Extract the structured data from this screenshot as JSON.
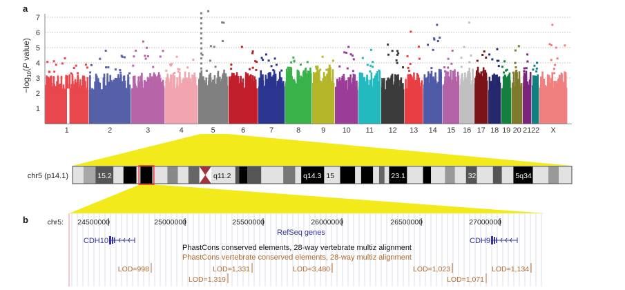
{
  "panel_a_label": "a",
  "panel_b_label": "b",
  "chart_data": {
    "type": "scatter",
    "subtype": "manhattan",
    "ylabel_parts": [
      "−log",
      "10",
      "(",
      "P",
      " value)"
    ],
    "ylim": [
      0,
      7.7
    ],
    "yticks": [
      "1",
      "2",
      "3",
      "4",
      "5",
      "6",
      "7"
    ],
    "grid": "dotted horizontal at 3-7",
    "categories": [
      "1",
      "2",
      "3",
      "4",
      "5",
      "6",
      "7",
      "8",
      "9",
      "10",
      "11",
      "12",
      "13",
      "14",
      "15",
      "16",
      "17",
      "18",
      "19",
      "20",
      "21",
      "22",
      "X"
    ],
    "colors": [
      "#e8474e",
      "#5560a8",
      "#b864a8",
      "#f2a5ae",
      "#808080",
      "#c11f2b",
      "#2a3590",
      "#39b24a",
      "#b5b52a",
      "#9b3d98",
      "#22b9bf",
      "#3b3b3b",
      "#e83e44",
      "#4e5aa8",
      "#b462a8",
      "#c0c0c0",
      "#7a1418",
      "#26286e",
      "#148040",
      "#7d7a2c",
      "#7a247c",
      "#128080",
      "#f08080"
    ],
    "max_neglog10_p": [
      4.3,
      4.8,
      5.4,
      4.4,
      7.4,
      5.05,
      4.55,
      4.35,
      4.4,
      5.05,
      4.85,
      5.2,
      6.05,
      6.5,
      4.8,
      6.65,
      4.75,
      4.9,
      4.1,
      5.1,
      4.55,
      4.0,
      6.5
    ]
  },
  "ideogram": {
    "label": "chr5 (p14.1)",
    "band_labels": [
      "15.2",
      "q11.2",
      "q14.3",
      "15",
      "23.1",
      "32",
      "5q34"
    ],
    "highlight_color": "#e8323c",
    "zoom_color": "#f2ea1a"
  },
  "browser": {
    "chrom_label": "chr5:",
    "coordinates": [
      "24500000",
      "25000000",
      "25500000",
      "26000000",
      "26500000",
      "27000000"
    ],
    "refseq_title": "RefSeq genes",
    "genes": [
      "CDH10",
      "CDH9"
    ],
    "phastcons_track": "PhastCons conserved elements, 28-way vertebrate multiz alignment",
    "phastcons_vertebrate_track": "PhastCons vertebrate conserved elements, 28-way multiz alignment",
    "lod_scores": [
      "LOD=998",
      "LOD=1,331",
      "LOD=3,480",
      "LOD=1,023",
      "LOD=1,134",
      "LOD=1,319",
      "LOD=1,071"
    ],
    "gene_color": "#333399",
    "lod_color": "#b06a2c"
  }
}
